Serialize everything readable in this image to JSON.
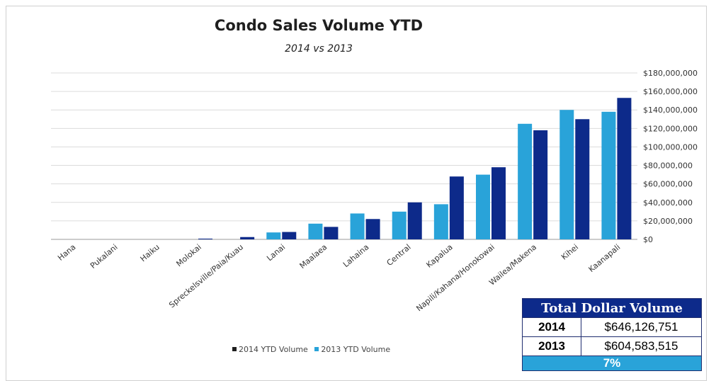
{
  "chart_data": {
    "type": "bar",
    "title": "Condo Sales Volume YTD",
    "subtitle": "2014 vs 2013",
    "xlabel": "",
    "ylabel": "",
    "ylim": [
      0,
      180000000
    ],
    "y_ticks": [
      "$0",
      "$20,000,000",
      "$40,000,000",
      "$60,000,000",
      "$80,000,000",
      "$100,000,000",
      "$120,000,000",
      "$140,000,000",
      "$160,000,000",
      "$180,000,000"
    ],
    "y_axis_side": "right",
    "grid": true,
    "legend_position": "bottom",
    "categories": [
      "Hana",
      "Pukalani",
      "Haiku",
      "Molokai",
      "Spreckelsville/Paia/Kuau",
      "Lanai",
      "Maalaea",
      "Lahaina",
      "Central",
      "Kapalua",
      "Napili/Kahana/Honokowai",
      "Wailea/Makena",
      "Kihei",
      "Kaanapali"
    ],
    "series": [
      {
        "name": "2013 YTD Volume",
        "color": "#29a3d9",
        "values": [
          0,
          0,
          0,
          0,
          0,
          7500000,
          17000000,
          28000000,
          30000000,
          38000000,
          70000000,
          125000000,
          140000000,
          138000000
        ]
      },
      {
        "name": "2014 YTD Volume",
        "color": "#0d2a8a",
        "values": [
          0,
          0,
          0,
          800000,
          2500000,
          8000000,
          13500000,
          22000000,
          40000000,
          68000000,
          78000000,
          118000000,
          130000000,
          153000000
        ]
      }
    ]
  },
  "legend": {
    "item1": "2014 YTD Volume",
    "item2": "2013 YTD Volume",
    "color1": "#1f1f1f",
    "color2": "#29a3d9"
  },
  "total_table": {
    "header": "Total Dollar Volume",
    "rows": [
      {
        "year": "2014",
        "amount": "$646,126,751"
      },
      {
        "year": "2013",
        "amount": "$604,583,515"
      }
    ],
    "change": "7%"
  }
}
